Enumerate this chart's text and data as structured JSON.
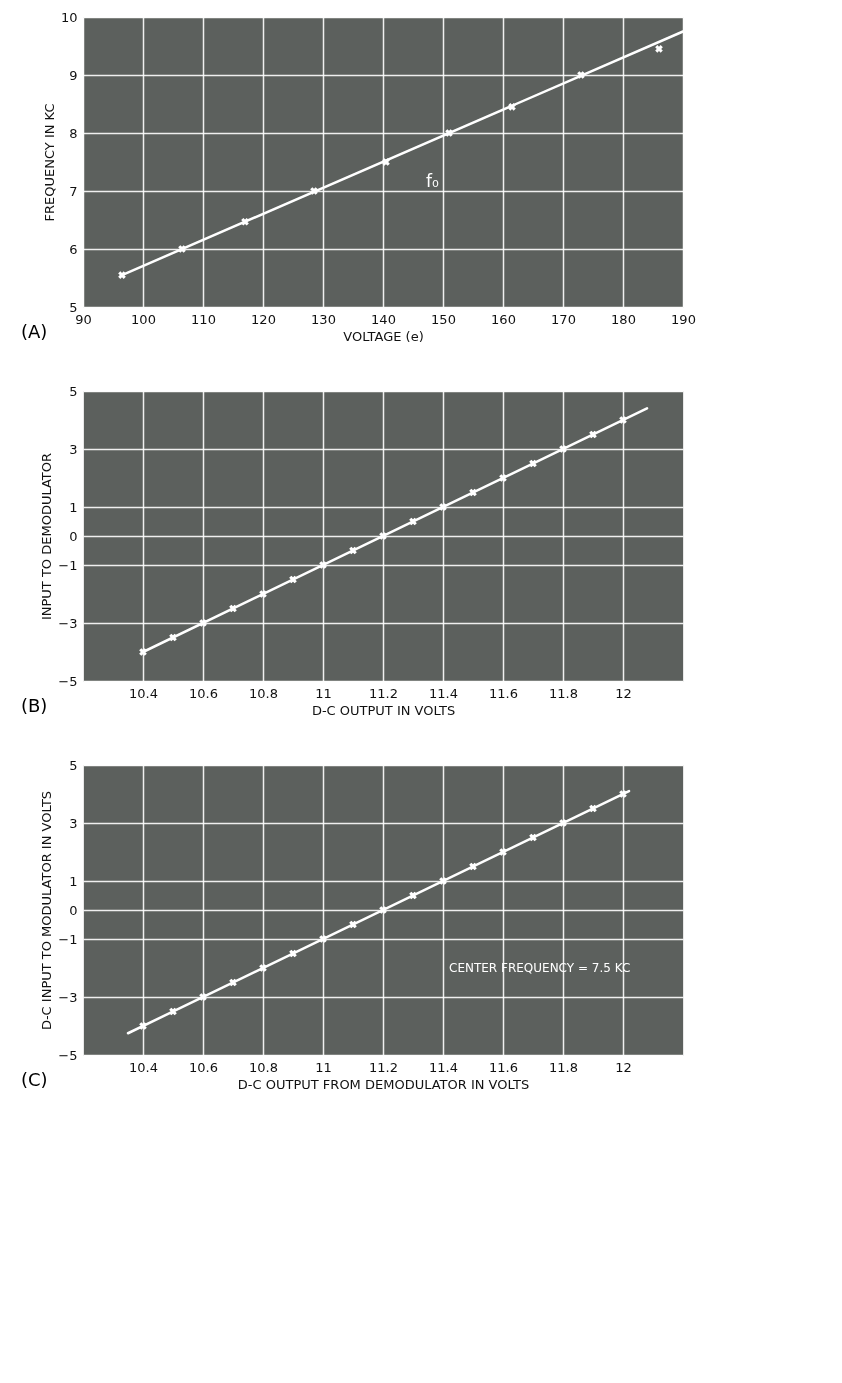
{
  "chart_data": [
    {
      "type": "line",
      "title": "(A)",
      "xlabel": "VOLTAGE (e)",
      "ylabel": "FREQUENCY IN KC",
      "xlim": [
        90,
        190
      ],
      "xticks": [
        90,
        100,
        110,
        120,
        130,
        140,
        150,
        160,
        170,
        180,
        190
      ],
      "ylim": [
        5,
        10
      ],
      "yticks": [
        5,
        6,
        7,
        8,
        9,
        10
      ],
      "grid": true,
      "series": [
        {
          "color": "#ffffff",
          "marker": "none",
          "x": [
            96.5,
            190
          ],
          "values": [
            5.55,
            9.75
          ]
        },
        {
          "type": "scatter",
          "color": "#ffffff",
          "marker": "cross",
          "x": [
            96.5,
            106.5,
            117,
            128.5,
            140.5,
            151,
            161.5,
            173,
            186
          ],
          "values": [
            5.55,
            6,
            6.47,
            7,
            7.5,
            8,
            8.45,
            9,
            9.45
          ]
        }
      ],
      "annotations": [
        {
          "text": "f₀",
          "x": 140.5,
          "y": 7.5
        }
      ]
    },
    {
      "type": "line",
      "title": "(B)",
      "xlabel": "D-C OUTPUT IN VOLTS",
      "ylabel": "INPUT TO DEMODULATOR",
      "xlim": [
        10.2,
        12.2
      ],
      "xticks": [
        10.4,
        10.6,
        10.8,
        11,
        11.2,
        11.4,
        11.6,
        11.8,
        12
      ],
      "ylim": [
        -5,
        5
      ],
      "yticks": [
        -5,
        -3,
        -1,
        0,
        1,
        3,
        5
      ],
      "grid": true,
      "series": [
        {
          "color": "#ffffff",
          "marker": "none",
          "x": [
            10.4,
            12.08
          ],
          "values": [
            -4,
            4.4
          ]
        },
        {
          "type": "scatter",
          "color": "#ffffff",
          "marker": "cross",
          "x": [
            10.4,
            10.5,
            10.6,
            10.7,
            10.8,
            10.9,
            11.0,
            11.1,
            11.2,
            11.3,
            11.4,
            11.5,
            11.6,
            11.7,
            11.8,
            11.9,
            12.0
          ],
          "values": [
            -4,
            -3.5,
            -3,
            -2.5,
            -2,
            -1.5,
            -1,
            -0.5,
            0,
            0.5,
            1,
            1.5,
            2,
            2.5,
            3,
            3.5,
            4
          ]
        }
      ]
    },
    {
      "type": "line",
      "title": "(C)",
      "xlabel": "D-C OUTPUT FROM DEMODULATOR IN VOLTS",
      "ylabel": "D-C INPUT TO MODULATOR IN VOLTS",
      "xlim": [
        10.2,
        12.2
      ],
      "xticks": [
        10.4,
        10.6,
        10.8,
        11,
        11.2,
        11.4,
        11.6,
        11.8,
        12
      ],
      "ylim": [
        -5,
        5
      ],
      "yticks": [
        -5,
        -3,
        -1,
        0,
        1,
        3,
        5
      ],
      "grid": true,
      "series": [
        {
          "color": "#ffffff",
          "marker": "none",
          "x": [
            10.35,
            12.02
          ],
          "values": [
            -4.25,
            4.1
          ]
        },
        {
          "type": "scatter",
          "color": "#ffffff",
          "marker": "cross",
          "x": [
            10.4,
            10.5,
            10.6,
            10.7,
            10.8,
            10.9,
            11.0,
            11.1,
            11.2,
            11.3,
            11.4,
            11.5,
            11.6,
            11.7,
            11.8,
            11.9,
            12.0
          ],
          "values": [
            -4,
            -3.5,
            -3,
            -2.5,
            -2,
            -1.5,
            -1,
            -0.5,
            0,
            0.5,
            1,
            1.5,
            2,
            2.5,
            3,
            3.5,
            4
          ]
        }
      ],
      "annotations": [
        "CENTER FREQUENCY = 7.5 KC"
      ]
    }
  ]
}
